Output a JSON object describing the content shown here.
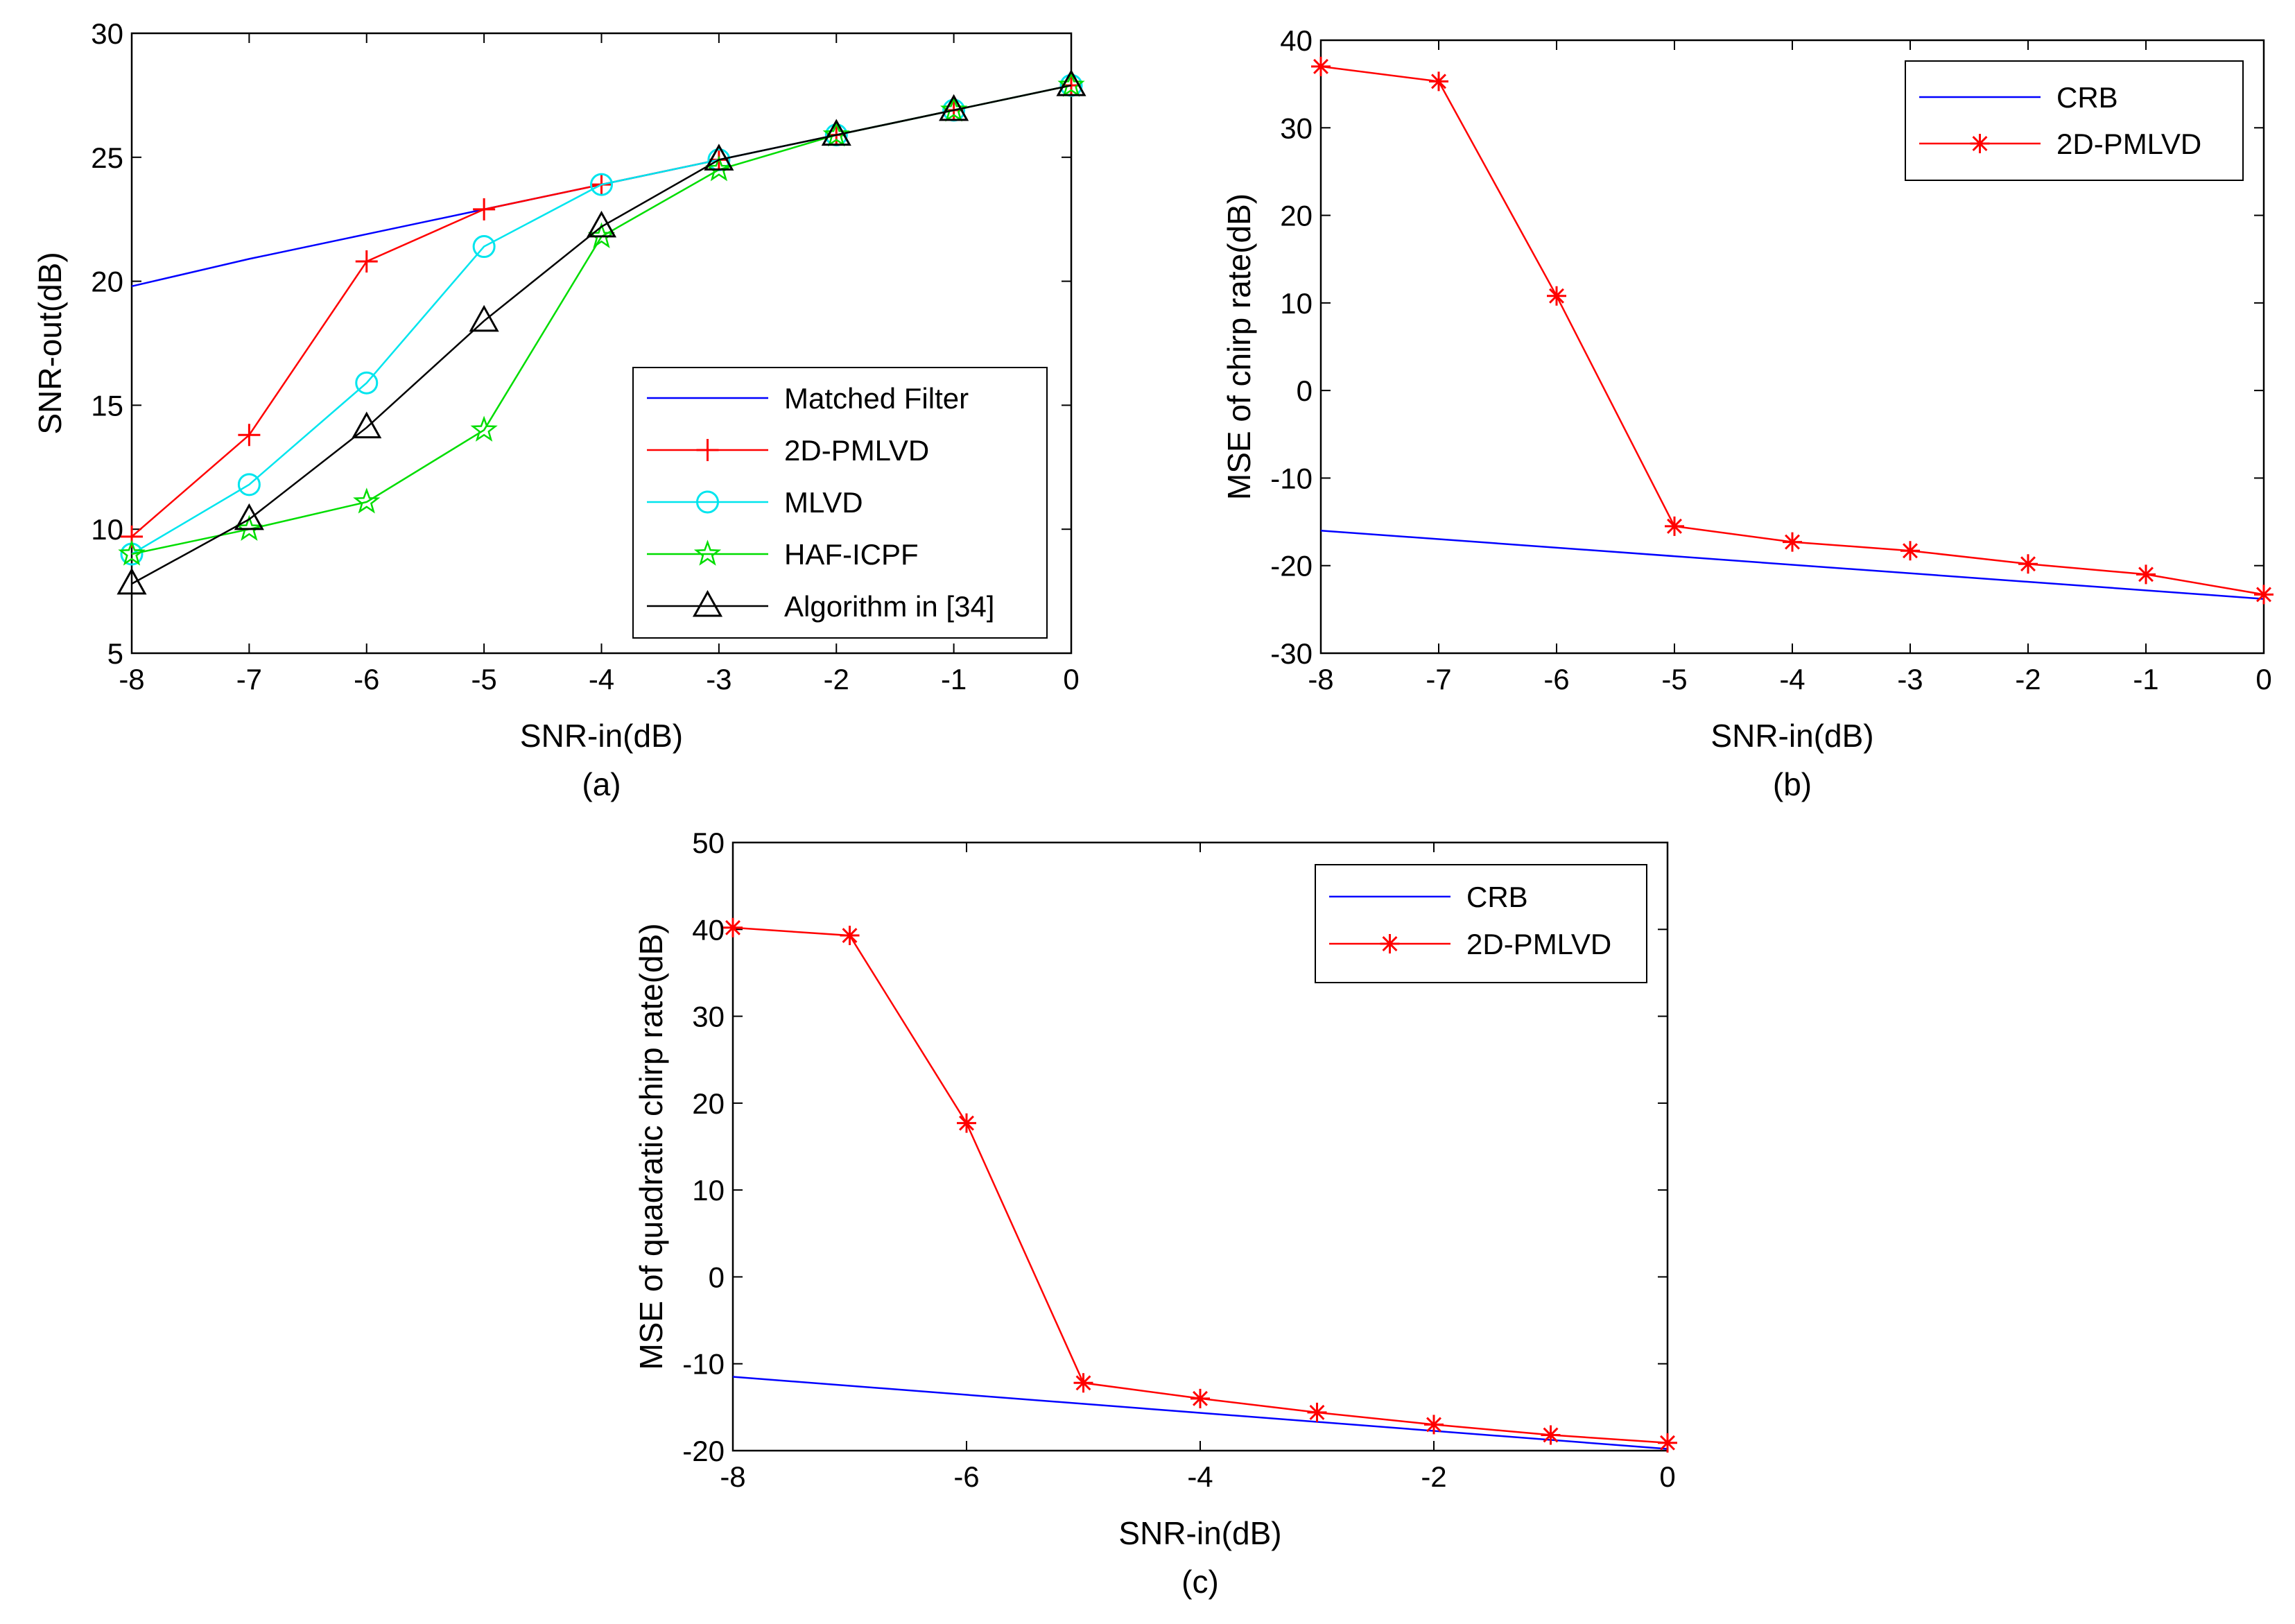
{
  "chart_data": [
    {
      "type": "line",
      "caption": "(a)",
      "xlabel": "SNR-in(dB)",
      "ylabel": "SNR-out(dB)",
      "xlim": [
        -8,
        0
      ],
      "ylim": [
        5,
        30
      ],
      "xticks": [
        -8,
        -7,
        -6,
        -5,
        -4,
        -3,
        -2,
        -1,
        0
      ],
      "yticks": [
        5,
        10,
        15,
        20,
        25,
        30
      ],
      "legend_position": "bottom-right",
      "series": [
        {
          "name": "Matched Filter",
          "color": "#0000ff",
          "marker": "none",
          "x": [
            -8,
            -7,
            -6,
            -5,
            -4,
            -3,
            -2,
            -1,
            0
          ],
          "y": [
            19.8,
            20.9,
            21.9,
            22.9,
            23.9,
            24.9,
            25.9,
            26.9,
            27.9
          ]
        },
        {
          "name": "2D-PMLVD",
          "color": "#ff0000",
          "marker": "plus",
          "x": [
            -8,
            -7,
            -6,
            -5,
            -4,
            -3,
            -2,
            -1,
            0
          ],
          "y": [
            9.7,
            13.8,
            20.8,
            22.9,
            23.9,
            24.9,
            25.9,
            26.9,
            27.9
          ]
        },
        {
          "name": "MLVD",
          "color": "#00e5ee",
          "marker": "circle",
          "x": [
            -8,
            -7,
            -6,
            -5,
            -4,
            -3,
            -2,
            -1,
            0
          ],
          "y": [
            9.0,
            11.8,
            15.9,
            21.4,
            23.9,
            24.9,
            25.9,
            26.9,
            27.9
          ]
        },
        {
          "name": "HAF-ICPF",
          "color": "#00dd00",
          "marker": "star",
          "x": [
            -8,
            -7,
            -6,
            -5,
            -4,
            -3,
            -2,
            -1,
            0
          ],
          "y": [
            9.0,
            10.0,
            11.1,
            14.0,
            21.8,
            24.5,
            25.9,
            26.9,
            27.9
          ]
        },
        {
          "name": "Algorithm in [34]",
          "color": "#000000",
          "marker": "triangle",
          "x": [
            -8,
            -7,
            -6,
            -5,
            -4,
            -3,
            -2,
            -1,
            0
          ],
          "y": [
            7.8,
            10.4,
            14.1,
            18.4,
            22.2,
            24.9,
            25.9,
            26.9,
            27.9
          ]
        }
      ]
    },
    {
      "type": "line",
      "caption": "(b)",
      "xlabel": "SNR-in(dB)",
      "ylabel": "MSE of chirp rate(dB)",
      "xlim": [
        -8,
        0
      ],
      "ylim": [
        -30,
        40
      ],
      "xticks": [
        -8,
        -7,
        -6,
        -5,
        -4,
        -3,
        -2,
        -1,
        0
      ],
      "yticks": [
        -30,
        -20,
        -10,
        0,
        10,
        20,
        30,
        40
      ],
      "legend_position": "top-right",
      "series": [
        {
          "name": "CRB",
          "color": "#0000ff",
          "marker": "none",
          "x": [
            -8,
            0
          ],
          "y": [
            -16.0,
            -23.8
          ]
        },
        {
          "name": "2D-PMLVD",
          "color": "#ff0000",
          "marker": "asterisk",
          "x": [
            -8,
            -7,
            -6,
            -5,
            -4,
            -3,
            -2,
            -1,
            0
          ],
          "y": [
            37.0,
            35.3,
            10.8,
            -15.5,
            -17.3,
            -18.3,
            -19.8,
            -21.0,
            -23.3
          ]
        }
      ]
    },
    {
      "type": "line",
      "caption": "(c)",
      "xlabel": "SNR-in(dB)",
      "ylabel": "MSE of quadratic chirp rate(dB)",
      "xlim": [
        -8,
        0
      ],
      "ylim": [
        -20,
        50
      ],
      "xticks": [
        -8,
        -6,
        -4,
        -2,
        0
      ],
      "yticks": [
        -20,
        -10,
        0,
        10,
        20,
        30,
        40,
        50
      ],
      "legend_position": "top-right",
      "series": [
        {
          "name": "CRB",
          "color": "#0000ff",
          "marker": "none",
          "x": [
            -8,
            0
          ],
          "y": [
            -11.5,
            -19.8
          ]
        },
        {
          "name": "2D-PMLVD",
          "color": "#ff0000",
          "marker": "asterisk",
          "x": [
            -8,
            -7,
            -6,
            -5,
            -4,
            -3,
            -2,
            -1,
            0
          ],
          "y": [
            40.2,
            39.3,
            17.7,
            -12.2,
            -14.0,
            -15.6,
            -17.0,
            -18.2,
            -19.1
          ]
        }
      ]
    }
  ]
}
